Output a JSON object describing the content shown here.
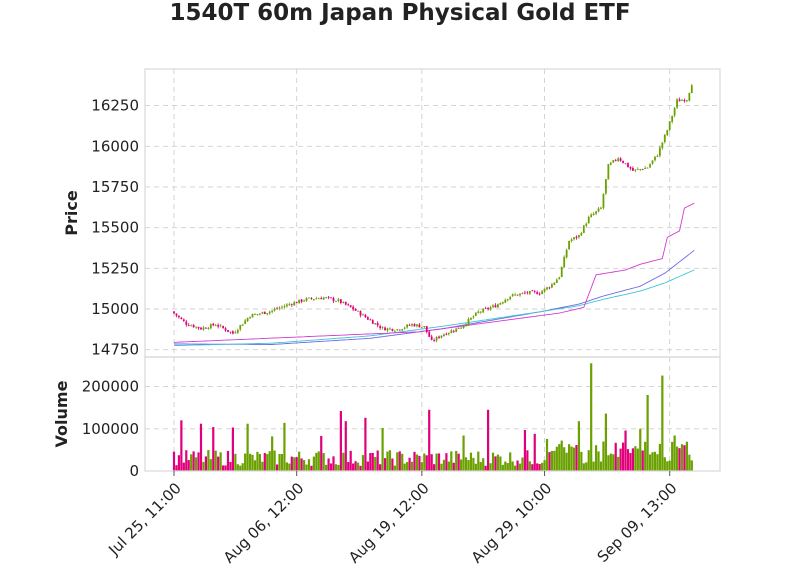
{
  "chart_data": {
    "type": "candlestick",
    "title": "1540T 60m Japan Physical Gold ETF",
    "price_panel": {
      "ylabel": "Price",
      "yticks": [
        14750,
        15000,
        15250,
        15500,
        15750,
        16000,
        16250
      ],
      "ylim": [
        14705,
        16475
      ]
    },
    "volume_panel": {
      "ylabel": "Volume",
      "yticks": [
        0,
        100000,
        200000
      ],
      "ylim": [
        0,
        270000
      ]
    },
    "xticks": [
      {
        "index": 0,
        "label": "Jul 25, 11:00"
      },
      {
        "index": 50,
        "label": "Aug 06, 12:00"
      },
      {
        "index": 101,
        "label": "Aug 19, 12:00"
      },
      {
        "index": 151,
        "label": "Aug 29, 10:00"
      },
      {
        "index": 202,
        "label": "Sep 09, 13:00"
      }
    ],
    "bar_count": 212,
    "close_anchors": [
      [
        0,
        14985
      ],
      [
        6,
        14910
      ],
      [
        12,
        14880
      ],
      [
        18,
        14905
      ],
      [
        25,
        14850
      ],
      [
        32,
        14960
      ],
      [
        40,
        14985
      ],
      [
        48,
        15030
      ],
      [
        55,
        15060
      ],
      [
        62,
        15070
      ],
      [
        68,
        15050
      ],
      [
        74,
        15000
      ],
      [
        80,
        14940
      ],
      [
        86,
        14880
      ],
      [
        92,
        14875
      ],
      [
        98,
        14905
      ],
      [
        103,
        14890
      ],
      [
        106,
        14800
      ],
      [
        110,
        14840
      ],
      [
        118,
        14890
      ],
      [
        125,
        14980
      ],
      [
        132,
        15020
      ],
      [
        138,
        15080
      ],
      [
        145,
        15100
      ],
      [
        150,
        15100
      ],
      [
        155,
        15150
      ],
      [
        158,
        15200
      ],
      [
        162,
        15420
      ],
      [
        166,
        15450
      ],
      [
        170,
        15560
      ],
      [
        175,
        15620
      ],
      [
        178,
        15880
      ],
      [
        182,
        15930
      ],
      [
        188,
        15850
      ],
      [
        194,
        15870
      ],
      [
        198,
        15950
      ],
      [
        202,
        16100
      ],
      [
        206,
        16280
      ],
      [
        210,
        16290
      ],
      [
        212,
        16385
      ]
    ],
    "price_lines": [
      {
        "name": "",
        "color": "#6a6ae6",
        "points": [
          [
            0,
            14785
          ],
          [
            40,
            14782
          ],
          [
            80,
            14820
          ],
          [
            110,
            14880
          ],
          [
            150,
            14985
          ],
          [
            165,
            15030
          ],
          [
            175,
            15080
          ],
          [
            190,
            15140
          ],
          [
            200,
            15220
          ],
          [
            212,
            15360
          ]
        ]
      },
      {
        "name": "",
        "color": "#40c4d4",
        "points": [
          [
            0,
            14775
          ],
          [
            40,
            14790
          ],
          [
            80,
            14835
          ],
          [
            110,
            14895
          ],
          [
            150,
            14985
          ],
          [
            165,
            15020
          ],
          [
            175,
            15060
          ],
          [
            190,
            15110
          ],
          [
            200,
            15160
          ],
          [
            212,
            15240
          ]
        ]
      },
      {
        "name": "",
        "color": "#d43bd4",
        "points": [
          [
            0,
            14795
          ],
          [
            100,
            14860
          ],
          [
            157,
            14975
          ],
          [
            167,
            15010
          ],
          [
            172,
            15210
          ],
          [
            184,
            15240
          ],
          [
            190,
            15275
          ],
          [
            199,
            15310
          ],
          [
            201,
            15440
          ],
          [
            206,
            15480
          ],
          [
            208,
            15620
          ],
          [
            212,
            15650
          ]
        ]
      }
    ],
    "volume_spikes": [
      [
        3,
        120000
      ],
      [
        11,
        112000
      ],
      [
        16,
        104000
      ],
      [
        24,
        103000
      ],
      [
        30,
        112000
      ],
      [
        40,
        82000
      ],
      [
        45,
        114000
      ],
      [
        60,
        83000
      ],
      [
        68,
        142000
      ],
      [
        70,
        118000
      ],
      [
        78,
        126000
      ],
      [
        85,
        102000
      ],
      [
        104,
        145000
      ],
      [
        118,
        84000
      ],
      [
        128,
        145000
      ],
      [
        143,
        97000
      ],
      [
        147,
        88000
      ],
      [
        152,
        76000
      ],
      [
        158,
        72000
      ],
      [
        165,
        118000
      ],
      [
        170,
        255000
      ],
      [
        176,
        136000
      ],
      [
        184,
        96000
      ],
      [
        190,
        100000
      ],
      [
        193,
        180000
      ],
      [
        199,
        226000
      ],
      [
        204,
        84000
      ]
    ],
    "colors": {
      "up": "#6aa000",
      "down": "#e0007a",
      "background": "#ffffff",
      "grid": "#cfcfcf"
    }
  }
}
